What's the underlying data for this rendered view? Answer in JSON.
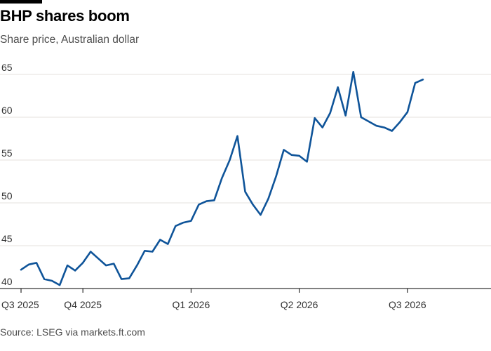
{
  "header": {
    "title": "BHP shares boom",
    "subtitle": "Share price, Australian dollar"
  },
  "footer": {
    "source": "Source: LSEG via markets.ft.com"
  },
  "colors": {
    "line": "#0f5499",
    "grid": "#e6e0dc",
    "baseline": "#000000"
  },
  "chart_data": {
    "type": "line",
    "title": "BHP shares boom",
    "subtitle": "Share price, Australian dollar",
    "xlabel": "",
    "ylabel": "",
    "ylim": [
      40,
      66
    ],
    "y_ticks": [
      40,
      45,
      50,
      55,
      60,
      65
    ],
    "y_tick_labels": [
      "40",
      "45",
      "50",
      "55",
      "60",
      "65"
    ],
    "x_tick_labels": [
      "Q3 2025",
      "Q4 2025",
      "Q1 2026",
      "Q2 2026",
      "Q3 2026"
    ],
    "x_tick_index": [
      0,
      8,
      22,
      36,
      50
    ],
    "x_range": [
      0,
      58
    ],
    "grid": true,
    "series": [
      {
        "values": [
          42.2,
          42.8,
          43.0,
          41.1,
          40.9,
          40.4,
          42.7,
          42.1,
          43.0,
          44.3,
          43.5,
          42.7,
          42.9,
          41.1,
          41.2,
          42.7,
          44.4,
          44.3,
          45.7,
          45.2,
          47.3,
          47.7,
          47.9,
          49.8,
          50.2,
          50.3,
          52.9,
          55.0,
          57.8,
          51.3,
          49.8,
          48.6,
          50.5,
          53.1,
          56.2,
          55.6,
          55.5,
          54.8,
          59.9,
          58.8,
          60.5,
          63.5,
          60.2,
          65.3,
          60.0,
          59.5,
          59.0,
          58.8,
          58.4,
          59.4,
          60.6,
          64.0,
          64.4
        ]
      }
    ]
  }
}
